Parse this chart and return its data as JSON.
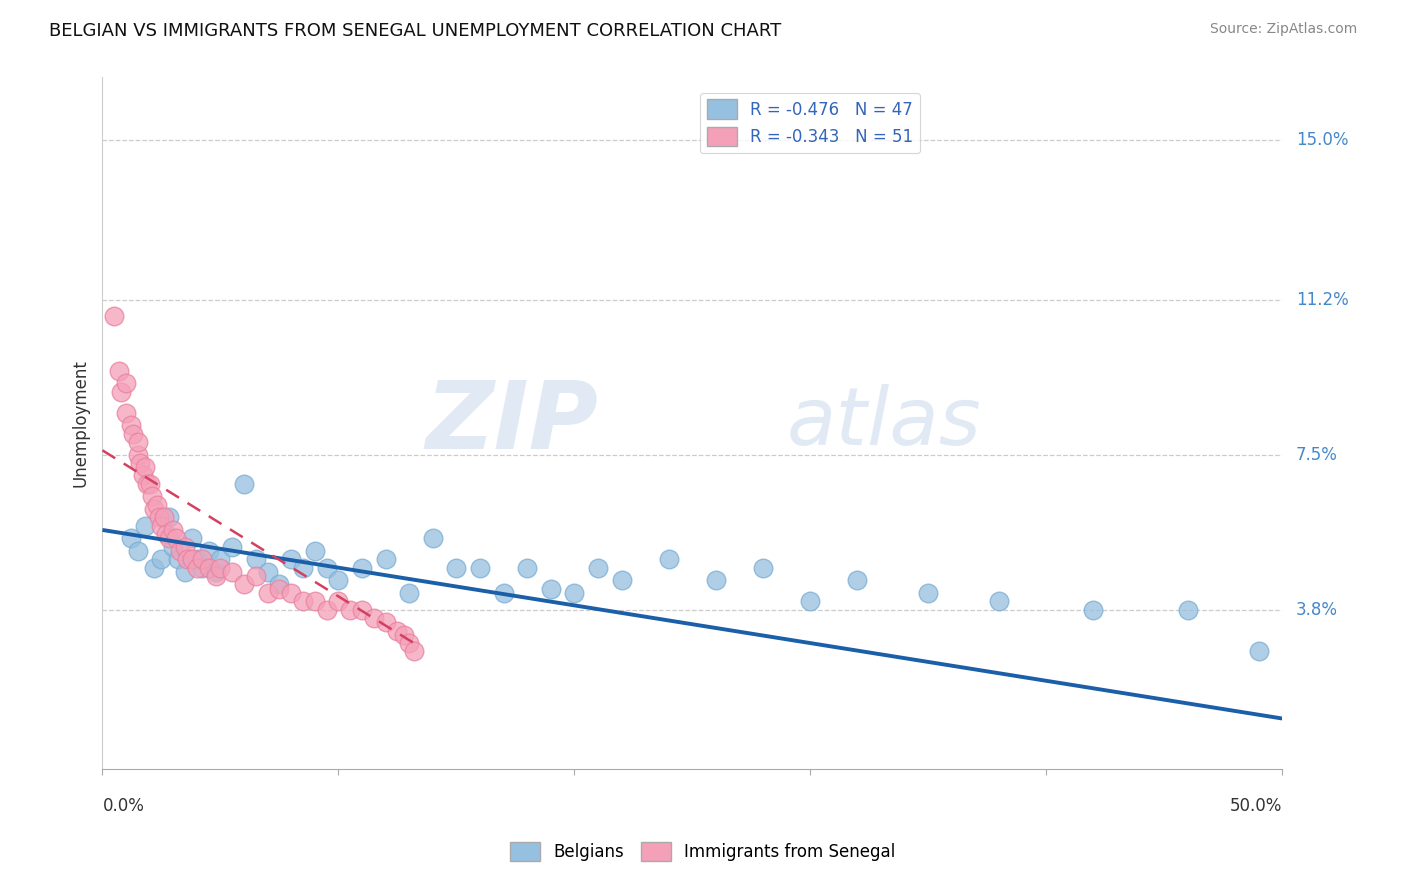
{
  "title": "BELGIAN VS IMMIGRANTS FROM SENEGAL UNEMPLOYMENT CORRELATION CHART",
  "source": "Source: ZipAtlas.com",
  "ylabel": "Unemployment",
  "xlim": [
    0.0,
    0.5
  ],
  "ylim": [
    0.0,
    0.165
  ],
  "yticks": [
    0.038,
    0.075,
    0.112,
    0.15
  ],
  "ytick_labels": [
    "3.8%",
    "7.5%",
    "11.2%",
    "15.0%"
  ],
  "xtick_labels": [
    "0.0%",
    "50.0%"
  ],
  "watermark_zip": "ZIP",
  "watermark_atlas": "atlas",
  "legend_entries": [
    "R = -0.476   N = 47",
    "R = -0.343   N = 51"
  ],
  "legend_foot": [
    "Belgians",
    "Immigrants from Senegal"
  ],
  "blue_color": "#96c0e0",
  "pink_color": "#f4a0b8",
  "blue_line_color": "#1a5fa8",
  "pink_line_color": "#d44060",
  "blue_scatter_edge": "#7aadd4",
  "pink_scatter_edge": "#e880a0",
  "belgian_x": [
    0.012,
    0.015,
    0.018,
    0.022,
    0.025,
    0.028,
    0.03,
    0.032,
    0.035,
    0.038,
    0.04,
    0.042,
    0.045,
    0.048,
    0.05,
    0.055,
    0.06,
    0.065,
    0.07,
    0.075,
    0.08,
    0.085,
    0.09,
    0.095,
    0.1,
    0.11,
    0.12,
    0.13,
    0.14,
    0.15,
    0.16,
    0.17,
    0.18,
    0.19,
    0.2,
    0.21,
    0.22,
    0.24,
    0.26,
    0.28,
    0.3,
    0.32,
    0.35,
    0.38,
    0.42,
    0.46,
    0.49
  ],
  "belgian_y": [
    0.055,
    0.052,
    0.058,
    0.048,
    0.05,
    0.06,
    0.053,
    0.05,
    0.047,
    0.055,
    0.05,
    0.048,
    0.052,
    0.047,
    0.05,
    0.053,
    0.068,
    0.05,
    0.047,
    0.044,
    0.05,
    0.048,
    0.052,
    0.048,
    0.045,
    0.048,
    0.05,
    0.042,
    0.055,
    0.048,
    0.048,
    0.042,
    0.048,
    0.043,
    0.042,
    0.048,
    0.045,
    0.05,
    0.045,
    0.048,
    0.04,
    0.045,
    0.042,
    0.04,
    0.038,
    0.038,
    0.028
  ],
  "senegal_x": [
    0.005,
    0.007,
    0.008,
    0.01,
    0.01,
    0.012,
    0.013,
    0.015,
    0.015,
    0.016,
    0.017,
    0.018,
    0.019,
    0.02,
    0.021,
    0.022,
    0.023,
    0.024,
    0.025,
    0.026,
    0.027,
    0.028,
    0.03,
    0.031,
    0.033,
    0.035,
    0.036,
    0.038,
    0.04,
    0.042,
    0.045,
    0.048,
    0.05,
    0.055,
    0.06,
    0.065,
    0.07,
    0.075,
    0.08,
    0.085,
    0.09,
    0.095,
    0.1,
    0.105,
    0.11,
    0.115,
    0.12,
    0.125,
    0.128,
    0.13,
    0.132
  ],
  "senegal_y": [
    0.108,
    0.095,
    0.09,
    0.085,
    0.092,
    0.082,
    0.08,
    0.075,
    0.078,
    0.073,
    0.07,
    0.072,
    0.068,
    0.068,
    0.065,
    0.062,
    0.063,
    0.06,
    0.058,
    0.06,
    0.056,
    0.055,
    0.057,
    0.055,
    0.052,
    0.053,
    0.05,
    0.05,
    0.048,
    0.05,
    0.048,
    0.046,
    0.048,
    0.047,
    0.044,
    0.046,
    0.042,
    0.043,
    0.042,
    0.04,
    0.04,
    0.038,
    0.04,
    0.038,
    0.038,
    0.036,
    0.035,
    0.033,
    0.032,
    0.03,
    0.028
  ],
  "blue_regline_x": [
    0.0,
    0.5
  ],
  "blue_regline_y": [
    0.057,
    0.012
  ],
  "pink_regline_x": [
    0.0,
    0.132
  ],
  "pink_regline_y": [
    0.076,
    0.03
  ]
}
